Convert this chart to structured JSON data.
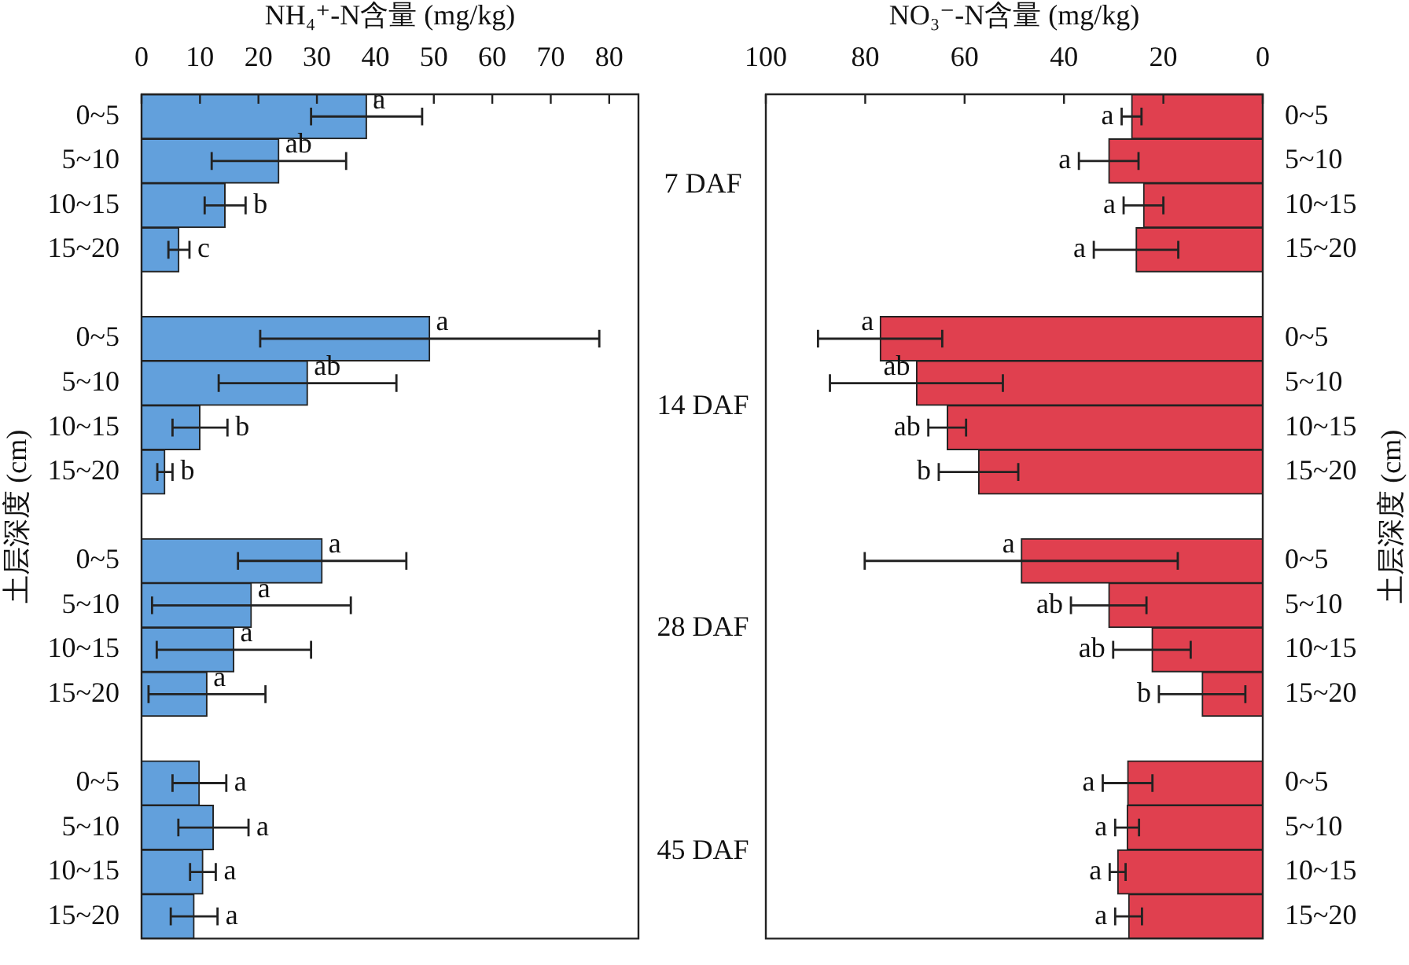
{
  "chart_data": [
    {
      "type": "bar",
      "orientation": "horizontal",
      "xlabel": "NH₄⁺-N含量 (mg/kg)",
      "ylabel": "土层深度 (cm)",
      "categories": [
        "0~5",
        "5~10",
        "10~15",
        "15~20",
        null,
        "0~5",
        "5~10",
        "10~15",
        "15~20",
        null,
        "0~5",
        "5~10",
        "10~15",
        "15~20",
        null,
        "0~5",
        "5~10",
        "10~15",
        "15~20"
      ],
      "values": [
        38.5,
        23.5,
        14.3,
        6.4,
        null,
        49.3,
        28.4,
        10.0,
        4.0,
        null,
        30.9,
        18.8,
        15.8,
        11.2,
        null,
        9.9,
        12.3,
        10.5,
        9.0
      ],
      "errors": [
        9.5,
        11.5,
        3.5,
        1.8,
        null,
        29,
        15.2,
        4.7,
        1.3,
        null,
        14.4,
        17,
        13.2,
        10,
        null,
        4.6,
        6,
        2.2,
        4
      ],
      "value_labels": [
        "a",
        "ab",
        "b",
        "c",
        null,
        "a",
        "ab",
        "b",
        "b",
        null,
        "a",
        "a",
        "a",
        "a",
        null,
        "a",
        "a",
        "a",
        "a"
      ],
      "color": "#62a0dc",
      "xlim": [
        0,
        85
      ],
      "xticks": [
        0,
        10,
        20,
        30,
        40,
        50,
        60,
        70,
        80
      ],
      "annotations": [
        "7 DAF",
        "14 DAF",
        "28 DAF",
        "45 DAF"
      ]
    },
    {
      "type": "bar",
      "orientation": "horizontal",
      "xlabel": "NO₃⁻-N含量 (mg/kg)",
      "ylabel": "土层深度 (cm)",
      "categories": [
        "0~5",
        "5~10",
        "10~15",
        "15~20",
        null,
        "0~5",
        "5~10",
        "10~15",
        "15~20",
        null,
        "0~5",
        "5~10",
        "10~15",
        "15~20",
        null,
        "0~5",
        "5~10",
        "10~15",
        "15~20"
      ],
      "values": [
        26.4,
        31.0,
        24.0,
        25.5,
        null,
        77.0,
        69.7,
        63.5,
        57.2,
        null,
        48.6,
        31.0,
        22.3,
        12.2,
        null,
        27.2,
        27.3,
        29.2,
        27.0
      ],
      "errors": [
        2,
        6,
        4,
        8.5,
        null,
        12.5,
        17.4,
        3.8,
        8,
        null,
        31.5,
        7.6,
        7.8,
        8.7,
        null,
        5,
        2.4,
        1.6,
        2.7
      ],
      "value_labels": [
        "a",
        "a",
        "a",
        "a",
        null,
        "a",
        "ab",
        "ab",
        "b",
        null,
        "a",
        "ab",
        "ab",
        "b",
        null,
        "a",
        "a",
        "a",
        "a"
      ],
      "color": "#e0404f",
      "xlim": [
        100,
        0
      ],
      "xticks": [
        100,
        80,
        60,
        40,
        20,
        0
      ]
    }
  ]
}
